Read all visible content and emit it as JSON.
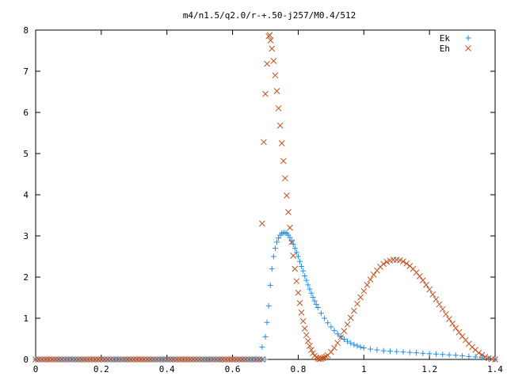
{
  "chart_data": {
    "type": "scatter",
    "title": "m4/n1.5/q2.0/r-+.50-j257/M0.4/512",
    "xlabel": "",
    "ylabel": "",
    "xlim": [
      0,
      1.4
    ],
    "ylim": [
      0,
      8
    ],
    "x_ticks": [
      "0",
      "0.2",
      "0.4",
      "0.6",
      "0.8",
      "1",
      "1.2",
      "1.4"
    ],
    "y_ticks": [
      "0",
      "1",
      "2",
      "3",
      "4",
      "5",
      "6",
      "7",
      "8"
    ],
    "grid": false,
    "legend_position": "top-right",
    "series": [
      {
        "name": "Ek",
        "marker": "plus",
        "color": "#1f8fe6",
        "points": [
          [
            0.0,
            0.0
          ],
          [
            0.7,
            0.0
          ],
          [
            0.69,
            0.3
          ],
          [
            0.7,
            0.55
          ],
          [
            0.705,
            0.9
          ],
          [
            0.71,
            1.3
          ],
          [
            0.715,
            1.8
          ],
          [
            0.72,
            2.2
          ],
          [
            0.725,
            2.5
          ],
          [
            0.73,
            2.7
          ],
          [
            0.735,
            2.85
          ],
          [
            0.74,
            2.95
          ],
          [
            0.745,
            3.02
          ],
          [
            0.75,
            3.06
          ],
          [
            0.755,
            3.08
          ],
          [
            0.76,
            3.08
          ],
          [
            0.765,
            3.06
          ],
          [
            0.77,
            3.02
          ],
          [
            0.775,
            2.96
          ],
          [
            0.78,
            2.88
          ],
          [
            0.785,
            2.8
          ],
          [
            0.79,
            2.7
          ],
          [
            0.795,
            2.6
          ],
          [
            0.8,
            2.5
          ],
          [
            0.805,
            2.38
          ],
          [
            0.81,
            2.26
          ],
          [
            0.815,
            2.15
          ],
          [
            0.82,
            2.03
          ],
          [
            0.825,
            1.92
          ],
          [
            0.83,
            1.81
          ],
          [
            0.835,
            1.71
          ],
          [
            0.84,
            1.61
          ],
          [
            0.845,
            1.51
          ],
          [
            0.85,
            1.42
          ],
          [
            0.855,
            1.34
          ],
          [
            0.86,
            1.26
          ],
          [
            0.87,
            1.12
          ],
          [
            0.88,
            1.0
          ],
          [
            0.89,
            0.89
          ],
          [
            0.9,
            0.79
          ],
          [
            0.91,
            0.7
          ],
          [
            0.92,
            0.62
          ],
          [
            0.93,
            0.55
          ],
          [
            0.94,
            0.49
          ],
          [
            0.95,
            0.44
          ],
          [
            0.96,
            0.4
          ],
          [
            0.97,
            0.36
          ],
          [
            0.98,
            0.33
          ],
          [
            0.99,
            0.3
          ],
          [
            1.0,
            0.28
          ],
          [
            1.02,
            0.25
          ],
          [
            1.04,
            0.23
          ],
          [
            1.06,
            0.21
          ],
          [
            1.08,
            0.2
          ],
          [
            1.1,
            0.19
          ],
          [
            1.12,
            0.18
          ],
          [
            1.14,
            0.17
          ],
          [
            1.16,
            0.16
          ],
          [
            1.18,
            0.15
          ],
          [
            1.2,
            0.14
          ],
          [
            1.22,
            0.13
          ],
          [
            1.24,
            0.12
          ],
          [
            1.26,
            0.11
          ],
          [
            1.28,
            0.1
          ],
          [
            1.3,
            0.09
          ],
          [
            1.32,
            0.07
          ],
          [
            1.34,
            0.06
          ],
          [
            1.36,
            0.04
          ],
          [
            1.38,
            0.02
          ],
          [
            1.4,
            0.0
          ]
        ]
      },
      {
        "name": "Eh",
        "marker": "cross",
        "color": "#c0501e",
        "points": [
          [
            0.0,
            0.0
          ],
          [
            0.69,
            0.0
          ],
          [
            0.69,
            3.3
          ],
          [
            0.695,
            5.28
          ],
          [
            0.7,
            6.45
          ],
          [
            0.705,
            7.18
          ],
          [
            0.71,
            7.85
          ],
          [
            0.713,
            7.88
          ],
          [
            0.716,
            7.75
          ],
          [
            0.72,
            7.55
          ],
          [
            0.725,
            7.25
          ],
          [
            0.73,
            6.9
          ],
          [
            0.735,
            6.52
          ],
          [
            0.74,
            6.1
          ],
          [
            0.745,
            5.68
          ],
          [
            0.75,
            5.25
          ],
          [
            0.755,
            4.82
          ],
          [
            0.76,
            4.4
          ],
          [
            0.765,
            3.98
          ],
          [
            0.77,
            3.58
          ],
          [
            0.775,
            3.2
          ],
          [
            0.78,
            2.85
          ],
          [
            0.785,
            2.52
          ],
          [
            0.79,
            2.2
          ],
          [
            0.795,
            1.9
          ],
          [
            0.8,
            1.62
          ],
          [
            0.805,
            1.37
          ],
          [
            0.81,
            1.14
          ],
          [
            0.815,
            0.93
          ],
          [
            0.82,
            0.75
          ],
          [
            0.825,
            0.59
          ],
          [
            0.83,
            0.45
          ],
          [
            0.835,
            0.33
          ],
          [
            0.84,
            0.23
          ],
          [
            0.845,
            0.15
          ],
          [
            0.85,
            0.09
          ],
          [
            0.855,
            0.05
          ],
          [
            0.86,
            0.02
          ],
          [
            0.865,
            0.01
          ],
          [
            0.87,
            0.02
          ],
          [
            0.875,
            0.03
          ],
          [
            0.88,
            0.05
          ],
          [
            0.885,
            0.07
          ],
          [
            0.89,
            0.1
          ],
          [
            0.9,
            0.18
          ],
          [
            0.91,
            0.28
          ],
          [
            0.92,
            0.4
          ],
          [
            0.93,
            0.54
          ],
          [
            0.94,
            0.69
          ],
          [
            0.95,
            0.85
          ],
          [
            0.96,
            1.01
          ],
          [
            0.97,
            1.18
          ],
          [
            0.98,
            1.35
          ],
          [
            0.99,
            1.51
          ],
          [
            1.0,
            1.66
          ],
          [
            1.01,
            1.81
          ],
          [
            1.02,
            1.94
          ],
          [
            1.03,
            2.06
          ],
          [
            1.04,
            2.16
          ],
          [
            1.05,
            2.25
          ],
          [
            1.06,
            2.32
          ],
          [
            1.07,
            2.37
          ],
          [
            1.08,
            2.4
          ],
          [
            1.09,
            2.42
          ],
          [
            1.1,
            2.42
          ],
          [
            1.11,
            2.41
          ],
          [
            1.12,
            2.38
          ],
          [
            1.13,
            2.33
          ],
          [
            1.14,
            2.27
          ],
          [
            1.15,
            2.2
          ],
          [
            1.16,
            2.11
          ],
          [
            1.17,
            2.02
          ],
          [
            1.18,
            1.92
          ],
          [
            1.19,
            1.81
          ],
          [
            1.2,
            1.7
          ],
          [
            1.21,
            1.58
          ],
          [
            1.22,
            1.46
          ],
          [
            1.23,
            1.34
          ],
          [
            1.24,
            1.22
          ],
          [
            1.25,
            1.1
          ],
          [
            1.26,
            0.98
          ],
          [
            1.27,
            0.87
          ],
          [
            1.28,
            0.76
          ],
          [
            1.29,
            0.66
          ],
          [
            1.3,
            0.56
          ],
          [
            1.31,
            0.47
          ],
          [
            1.32,
            0.38
          ],
          [
            1.33,
            0.3
          ],
          [
            1.34,
            0.23
          ],
          [
            1.35,
            0.16
          ],
          [
            1.36,
            0.11
          ],
          [
            1.37,
            0.06
          ],
          [
            1.38,
            0.03
          ],
          [
            1.39,
            0.01
          ],
          [
            1.4,
            0.0
          ]
        ]
      }
    ]
  }
}
